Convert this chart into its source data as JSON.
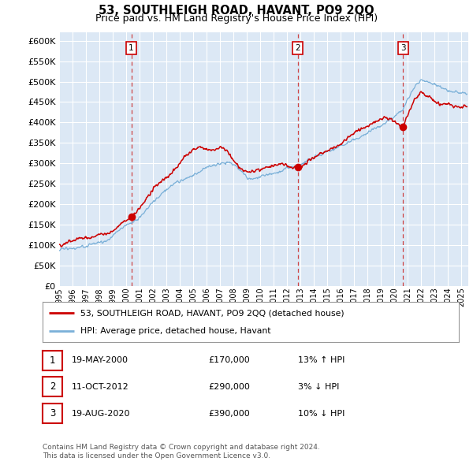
{
  "title": "53, SOUTHLEIGH ROAD, HAVANT, PO9 2QQ",
  "subtitle": "Price paid vs. HM Land Registry's House Price Index (HPI)",
  "fig_bg": "#ffffff",
  "plot_bg": "#dce8f5",
  "ylim": [
    0,
    620000
  ],
  "yticks": [
    0,
    50000,
    100000,
    150000,
    200000,
    250000,
    300000,
    350000,
    400000,
    450000,
    500000,
    550000,
    600000
  ],
  "ytick_labels": [
    "£0",
    "£50K",
    "£100K",
    "£150K",
    "£200K",
    "£250K",
    "£300K",
    "£350K",
    "£400K",
    "£450K",
    "£500K",
    "£550K",
    "£600K"
  ],
  "xlabel_years": [
    "1995",
    "1996",
    "1997",
    "1998",
    "1999",
    "2000",
    "2001",
    "2002",
    "2003",
    "2004",
    "2005",
    "2006",
    "2007",
    "2008",
    "2009",
    "2010",
    "2011",
    "2012",
    "2013",
    "2014",
    "2015",
    "2016",
    "2017",
    "2018",
    "2019",
    "2020",
    "2021",
    "2022",
    "2023",
    "2024",
    "2025"
  ],
  "xmin": 1995,
  "xmax": 2025.5,
  "sale_color": "#cc0000",
  "hpi_color": "#7ab0d8",
  "sale_label": "53, SOUTHLEIGH ROAD, HAVANT, PO9 2QQ (detached house)",
  "hpi_label": "HPI: Average price, detached house, Havant",
  "transactions": [
    {
      "num": 1,
      "date": "19-MAY-2000",
      "price": "£170,000",
      "rel": "13% ↑ HPI",
      "x_year": 2000.38,
      "y": 170000
    },
    {
      "num": 2,
      "date": "11-OCT-2012",
      "price": "£290,000",
      "rel": "3% ↓ HPI",
      "x_year": 2012.78,
      "y": 290000
    },
    {
      "num": 3,
      "date": "19-AUG-2020",
      "price": "£390,000",
      "rel": "10% ↓ HPI",
      "x_year": 2020.63,
      "y": 390000
    }
  ],
  "footer_line1": "Contains HM Land Registry data © Crown copyright and database right 2024.",
  "footer_line2": "This data is licensed under the Open Government Licence v3.0.",
  "vline_color": "#cc3333",
  "label_box_edge": "#cc0000",
  "grid_color": "#ffffff",
  "title_fontsize": 10.5,
  "subtitle_fontsize": 9.0
}
